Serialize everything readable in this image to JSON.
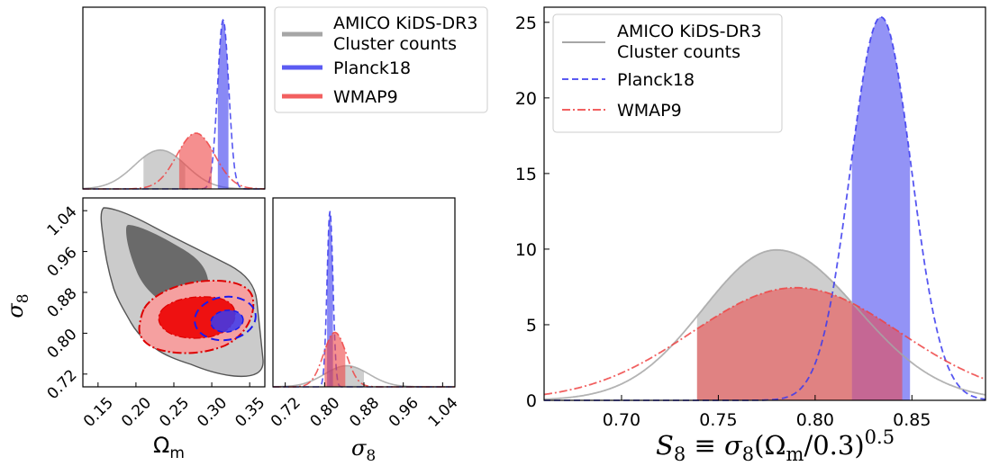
{
  "chart_data": [
    {
      "panel": "corner-1d-omega-m",
      "type": "line",
      "xlabel": "",
      "ylabel": "",
      "xlim": [
        0.13,
        0.37
      ],
      "legend": {
        "placement": "right",
        "entries": [
          "AMICO KiDS-DR3\nCluster counts",
          "Planck18",
          "WMAP9"
        ]
      },
      "series": [
        {
          "name": "AMICO KiDS-DR3 Cluster counts",
          "color": "#a6a6a6",
          "style": "solid",
          "mean": 0.232,
          "sigma": 0.034,
          "shaded": [
            0.21,
            0.265
          ]
        },
        {
          "name": "Planck18",
          "color": "#3a3aee",
          "style": "dashed",
          "mean": 0.315,
          "sigma": 0.0074,
          "shaded": [
            0.308,
            0.322
          ]
        },
        {
          "name": "WMAP9",
          "color": "#ee4444",
          "style": "dashdot",
          "mean": 0.279,
          "sigma": 0.025,
          "shaded": [
            0.257,
            0.3
          ]
        }
      ]
    },
    {
      "panel": "corner-2d-omega-m-sigma8",
      "type": "contour",
      "xlabel": "Ω_m",
      "ylabel": "σ_8",
      "xlim": [
        0.13,
        0.37
      ],
      "ylim": [
        0.695,
        1.065
      ],
      "xticks": [
        "0.15",
        "0.20",
        "0.25",
        "0.30",
        "0.35"
      ],
      "yticks": [
        "0.72",
        "0.80",
        "0.88",
        "0.96",
        "1.04"
      ],
      "series": [
        {
          "name": "AMICO KiDS-DR3 Cluster counts",
          "color": "#a6a6a6"
        },
        {
          "name": "Planck18",
          "color": "#3a3aee"
        },
        {
          "name": "WMAP9",
          "color": "#ee3333"
        }
      ]
    },
    {
      "panel": "corner-1d-sigma8",
      "type": "line",
      "xlabel": "σ_8",
      "xlim": [
        0.695,
        1.065
      ],
      "xticks": [
        "0.72",
        "0.80",
        "0.88",
        "0.96",
        "1.04"
      ],
      "series": [
        {
          "name": "AMICO KiDS-DR3 Cluster counts",
          "color": "#a6a6a6",
          "style": "solid",
          "mean": 0.845,
          "sigma": 0.045,
          "shaded": [
            0.81,
            0.88
          ]
        },
        {
          "name": "Planck18",
          "color": "#3a3aee",
          "style": "dashed",
          "mean": 0.811,
          "sigma": 0.006,
          "shaded": [
            0.805,
            0.817
          ]
        },
        {
          "name": "WMAP9",
          "color": "#ee4444",
          "style": "dashdot",
          "mean": 0.821,
          "sigma": 0.023,
          "shaded": [
            0.8,
            0.842
          ]
        }
      ]
    },
    {
      "panel": "s8-posterior",
      "type": "line",
      "xlabel": "S_8 ≡ σ_8(Ω_m/0.3)^0.5",
      "xlim": [
        0.66,
        0.888
      ],
      "ylim": [
        0,
        26
      ],
      "xticks": [
        "0.70",
        "0.75",
        "0.80",
        "0.85"
      ],
      "yticks": [
        "0",
        "5",
        "10",
        "15",
        "20",
        "25"
      ],
      "legend": {
        "placement": "top-left",
        "entries": [
          "AMICO KiDS-DR3\nCluster counts",
          "Planck18",
          "WMAP9"
        ]
      },
      "series": [
        {
          "name": "AMICO KiDS-DR3 Cluster counts",
          "color": "#a6a6a6",
          "style": "solid",
          "peak": 9.95,
          "mean": 0.78,
          "sigma_left": 0.038,
          "sigma_right": 0.042,
          "shaded": [
            0.739,
            0.819
          ]
        },
        {
          "name": "Planck18",
          "color": "#3a3aee",
          "style": "dashed",
          "peak": 25.35,
          "mean": 0.834,
          "sigma": 0.0157,
          "shaded": [
            0.819,
            0.849
          ]
        },
        {
          "name": "WMAP9",
          "color": "#ee4444",
          "style": "dashdot",
          "peak": 7.45,
          "mean": 0.79,
          "sigma": 0.0535,
          "shaded": [
            0.739,
            0.845
          ]
        }
      ]
    }
  ],
  "legend_labels": {
    "amico_line1": "AMICO KiDS-DR3",
    "amico_line2": "Cluster counts",
    "planck": "Planck18",
    "wmap": "WMAP9"
  },
  "axis_text": {
    "omega_m_label": "Ω",
    "omega_m_sub": "m",
    "sigma8_label": "σ",
    "sigma8_sub": "8",
    "s8_label": "S",
    "s8_sub": "8",
    "s8_rest": " ≡ σ",
    "s8_sub2": "8",
    "s8_paren_open": "(Ω",
    "s8_sub3": "m",
    "s8_paren_close": "/0.3)",
    "s8_exp": "0.5"
  }
}
